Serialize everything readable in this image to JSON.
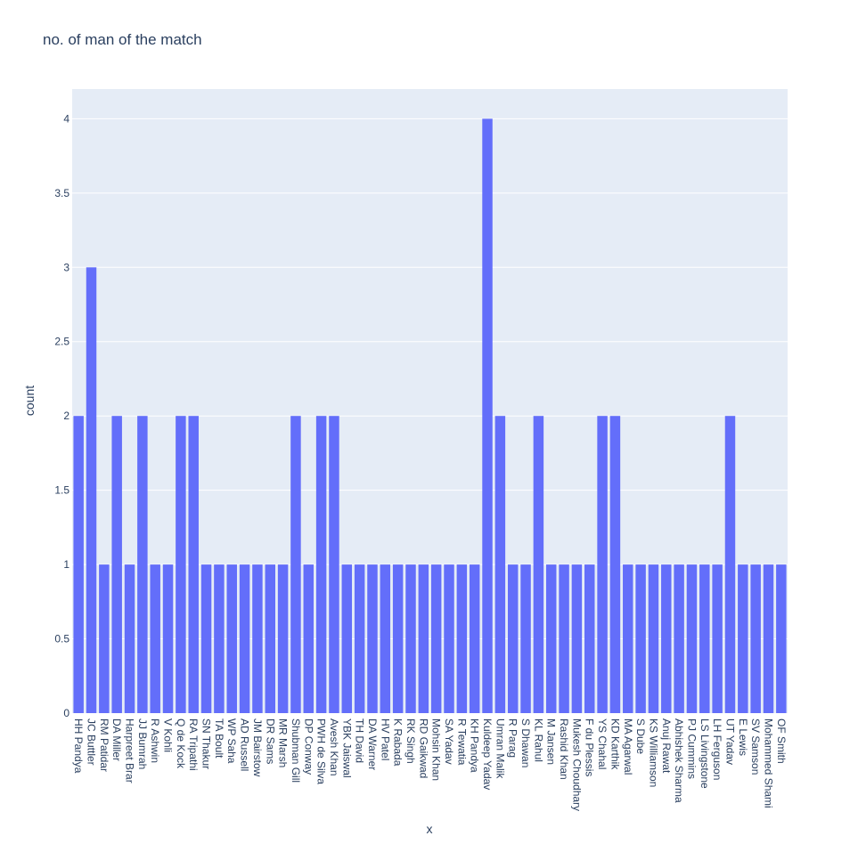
{
  "chart_data": {
    "type": "bar",
    "title": "no. of man of the match",
    "xlabel": "x",
    "ylabel": "count",
    "ylim": [
      0,
      4.2
    ],
    "yticks": [
      0,
      0.5,
      1,
      1.5,
      2,
      2.5,
      3,
      3.5,
      4
    ],
    "ytick_labels": [
      "0",
      "0.5",
      "1",
      "1.5",
      "2",
      "2.5",
      "3",
      "3.5",
      "4"
    ],
    "grid": true,
    "colors": {
      "bar": "#636efa",
      "plot_bg": "#e5ecf6",
      "text": "#2a3f5f"
    },
    "categories": [
      "HH Pandya",
      "JC Buttler",
      "RM Patidar",
      "DA Miller",
      "Harpreet Brar",
      "JJ Bumrah",
      "R Ashwin",
      "V Kohli",
      "Q de Kock",
      "RA Tripathi",
      "SN Thakur",
      "TA Boult",
      "WP Saha",
      "AD Russell",
      "JM Bairstow",
      "DR Sams",
      "MR Marsh",
      "Shubman Gill",
      "DP Conway",
      "PWH de Silva",
      "Avesh Khan",
      "YBK Jaiswal",
      "TH David",
      "DA Warner",
      "HV Patel",
      "K Rabada",
      "RK Singh",
      "RD Gaikwad",
      "Mohsin Khan",
      "SA Yadav",
      "R Tewatia",
      "KH Pandya",
      "Kuldeep Yadav",
      "Umran Malik",
      "R Parag",
      "S Dhawan",
      "KL Rahul",
      "M Jansen",
      "Rashid Khan",
      "Mukesh Choudhary",
      "F du Plessis",
      "YS Chahal",
      "KD Karthik",
      "MA Agarwal",
      "S Dube",
      "KS Williamson",
      "Anuj Rawat",
      "Abhishek Sharma",
      "PJ Cummins",
      "LS Livingstone",
      "LH Ferguson",
      "UT Yadav",
      "E Lewis",
      "SV Samson",
      "Mohammed Shami",
      "OF Smith"
    ],
    "values": [
      2,
      3,
      1,
      2,
      1,
      2,
      1,
      1,
      2,
      2,
      1,
      1,
      1,
      1,
      1,
      1,
      1,
      2,
      1,
      2,
      2,
      1,
      1,
      1,
      1,
      1,
      1,
      1,
      1,
      1,
      1,
      1,
      4,
      2,
      1,
      1,
      2,
      1,
      1,
      1,
      1,
      2,
      2,
      1,
      1,
      1,
      1,
      1,
      1,
      1,
      1,
      2,
      1,
      1,
      1,
      1
    ]
  }
}
